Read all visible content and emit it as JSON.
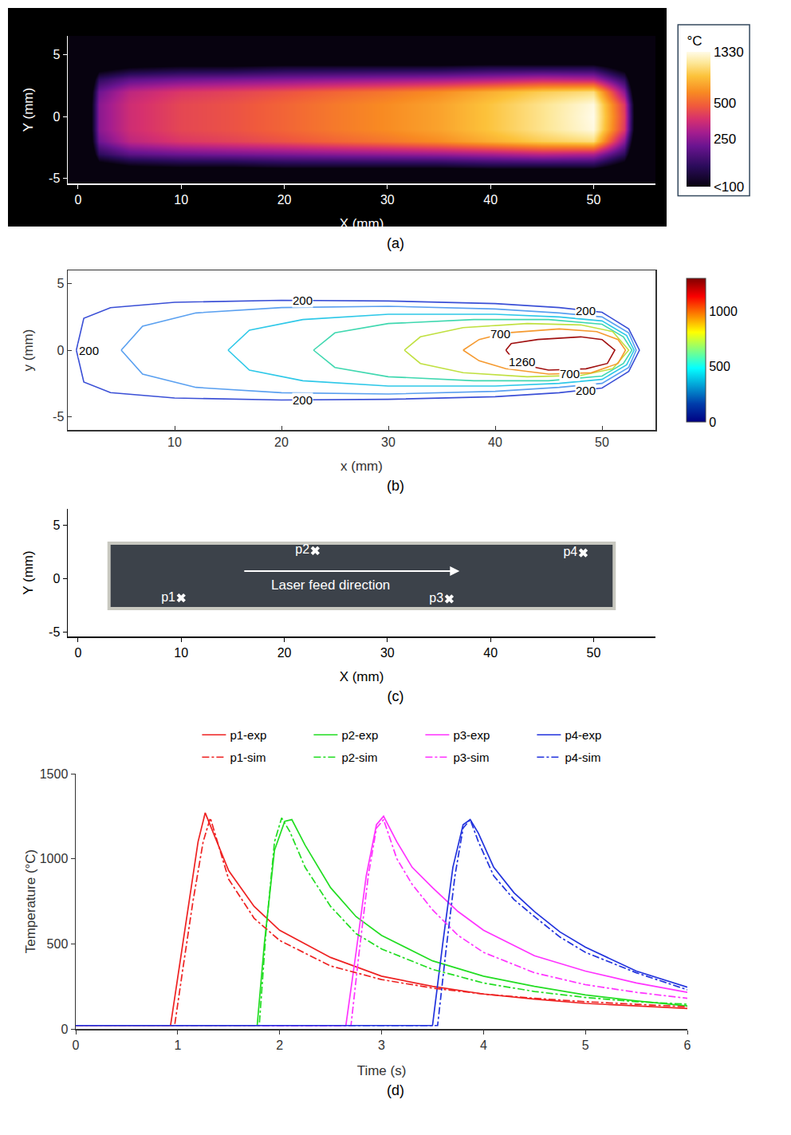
{
  "chart_data": [
    {
      "panel_label": "(a)",
      "type": "heatmap",
      "log": true,
      "grid": false,
      "x_label": "X (mm)",
      "y_label": "Y (mm)",
      "xlim": [
        -1,
        56
      ],
      "ylim": [
        -5.4,
        6.5
      ],
      "xticks": [
        0,
        10,
        20,
        30,
        40,
        50
      ],
      "yticks": [
        -5,
        0,
        5
      ],
      "x": [
        0,
        2,
        5,
        10,
        15,
        20,
        25,
        30,
        35,
        40,
        45,
        50,
        53,
        55
      ],
      "y": [
        -6,
        -5,
        -4,
        -3,
        -2,
        -1,
        0,
        1,
        2,
        3,
        4,
        5,
        6
      ],
      "z": [
        [
          20,
          20,
          20,
          20,
          20,
          20,
          20,
          20,
          20,
          20,
          20,
          20,
          20,
          20
        ],
        [
          20,
          30,
          40,
          40,
          40,
          40,
          40,
          40,
          40,
          40,
          40,
          40,
          30,
          20
        ],
        [
          20,
          80,
          100,
          110,
          110,
          120,
          120,
          120,
          120,
          130,
          130,
          130,
          80,
          20
        ],
        [
          20,
          150,
          200,
          220,
          230,
          240,
          250,
          260,
          270,
          290,
          320,
          300,
          150,
          20
        ],
        [
          20,
          220,
          320,
          380,
          410,
          450,
          500,
          550,
          620,
          750,
          900,
          1000,
          250,
          20
        ],
        [
          20,
          250,
          350,
          420,
          450,
          500,
          560,
          620,
          700,
          850,
          1050,
          1300,
          380,
          20
        ],
        [
          20,
          250,
          350,
          420,
          450,
          500,
          560,
          620,
          700,
          850,
          1050,
          1330,
          400,
          20
        ],
        [
          20,
          250,
          350,
          420,
          450,
          500,
          560,
          620,
          700,
          850,
          1050,
          1300,
          380,
          20
        ],
        [
          20,
          220,
          320,
          380,
          410,
          450,
          500,
          550,
          620,
          750,
          900,
          1000,
          250,
          20
        ],
        [
          20,
          150,
          200,
          220,
          230,
          240,
          250,
          260,
          270,
          290,
          320,
          300,
          150,
          20
        ],
        [
          20,
          80,
          100,
          110,
          110,
          120,
          120,
          120,
          120,
          130,
          130,
          130,
          80,
          20
        ],
        [
          20,
          30,
          40,
          40,
          40,
          40,
          40,
          40,
          40,
          40,
          40,
          40,
          30,
          20
        ],
        [
          20,
          20,
          20,
          20,
          20,
          20,
          20,
          20,
          20,
          20,
          20,
          20,
          20,
          20
        ]
      ],
      "colorbar_title": "°C",
      "colorbar_range": [
        100,
        1330
      ],
      "colorbar_ticks": [
        1330,
        500,
        250,
        {
          "value": 100,
          "label": "<100"
        }
      ]
    },
    {
      "panel_label": "(b)",
      "type": "contour_lines",
      "grid": false,
      "x_label": "x (mm)",
      "y_label": "y (mm)",
      "xlim": [
        0,
        55
      ],
      "ylim": [
        -6,
        6
      ],
      "xticks": [
        10,
        20,
        30,
        40,
        50
      ],
      "yticks": [
        -5,
        0,
        5
      ],
      "isotherms": [
        {
          "color": "#3a4fd6",
          "x": [
            0.8,
            1.5,
            4,
            10,
            20,
            30,
            40,
            46,
            50,
            52.5,
            53.5,
            52.5,
            50,
            46,
            40,
            30,
            20,
            10,
            4,
            1.5,
            0.8
          ],
          "y": [
            0,
            2.4,
            3.2,
            3.6,
            3.75,
            3.7,
            3.5,
            3.2,
            2.85,
            1.6,
            0,
            -1.6,
            -2.85,
            -3.2,
            -3.5,
            -3.7,
            -3.75,
            -3.6,
            -3.2,
            -2.4,
            0
          ]
        },
        {
          "color": "#5aa0f0",
          "x": [
            5,
            7,
            12,
            20,
            30,
            40,
            46,
            50,
            52.5,
            53.2,
            52.5,
            50,
            46,
            40,
            30,
            20,
            12,
            7,
            5
          ],
          "y": [
            0,
            1.8,
            2.8,
            3.2,
            3.3,
            3.1,
            2.8,
            2.5,
            1.3,
            0,
            -1.3,
            -2.5,
            -2.8,
            -3.1,
            -3.3,
            -3.2,
            -2.8,
            -1.8,
            0
          ]
        },
        {
          "color": "#2ec8e8",
          "x": [
            15,
            17,
            22,
            30,
            40,
            46,
            50,
            52.3,
            53,
            52.3,
            50,
            46,
            40,
            30,
            22,
            17,
            15
          ],
          "y": [
            0,
            1.5,
            2.3,
            2.7,
            2.7,
            2.5,
            2.2,
            1.1,
            0,
            -1.1,
            -2.2,
            -2.5,
            -2.7,
            -2.7,
            -2.3,
            -1.5,
            0
          ]
        },
        {
          "color": "#40d8b0",
          "x": [
            23,
            25,
            30,
            38,
            45,
            50,
            52,
            52.8,
            52,
            50,
            45,
            38,
            30,
            25,
            23
          ],
          "y": [
            0,
            1.3,
            2.0,
            2.3,
            2.3,
            1.95,
            1.0,
            0,
            -1.0,
            -1.95,
            -2.3,
            -2.3,
            -2.0,
            -1.3,
            0
          ]
        },
        {
          "color": "#c0e040",
          "x": [
            31.5,
            33,
            37,
            43,
            48,
            51,
            52.5,
            51,
            48,
            43,
            37,
            33,
            31.5
          ],
          "y": [
            0,
            1.0,
            1.7,
            2.0,
            1.9,
            1.4,
            0,
            -1.4,
            -1.9,
            -2.0,
            -1.7,
            -1.0,
            0
          ]
        },
        {
          "color": "#f59a30",
          "x": [
            37,
            38.5,
            41,
            46,
            49.5,
            51.5,
            52.2,
            51.5,
            49,
            45,
            41,
            38.5,
            37
          ],
          "y": [
            0,
            0.8,
            1.3,
            1.6,
            1.4,
            0.8,
            0,
            -1.0,
            -1.7,
            -1.8,
            -1.4,
            -0.8,
            0
          ]
        },
        {
          "color": "#a01010",
          "x": [
            41,
            41.5,
            44,
            48,
            50,
            51.2,
            50.5,
            48.5,
            45,
            42,
            41
          ],
          "y": [
            0,
            0.5,
            0.8,
            1.0,
            0.8,
            0,
            -1.0,
            -1.4,
            -1.5,
            -1.0,
            0
          ]
        }
      ],
      "labels": [
        {
          "text": "200",
          "x": 2.0,
          "y": 0
        },
        {
          "text": "200",
          "x": 22,
          "y": 3.75
        },
        {
          "text": "200",
          "x": 22,
          "y": -3.75
        },
        {
          "text": "700",
          "x": 40.5,
          "y": 1.25
        },
        {
          "text": "1260",
          "x": 42.5,
          "y": -0.85
        },
        {
          "text": "700",
          "x": 47,
          "y": -1.75
        },
        {
          "text": "200",
          "x": 48.5,
          "y": 3.0
        },
        {
          "text": "200",
          "x": 48.5,
          "y": -3.0
        }
      ],
      "colorbar_range": [
        0,
        1300
      ],
      "colorbar_ticks": [
        0,
        500,
        1000
      ]
    },
    {
      "panel_label": "(c)",
      "type": "scatter",
      "grid": false,
      "marker": "x",
      "color": "#ffffff",
      "x_label": "X (mm)",
      "y_label": "Y (mm)",
      "xlim": [
        -1,
        56
      ],
      "ylim": [
        -5.4,
        6.5
      ],
      "xticks": [
        0,
        10,
        20,
        30,
        40,
        50
      ],
      "yticks": [
        -5,
        0,
        5
      ],
      "track": {
        "x": [
          3,
          52
        ],
        "y": [
          -2.8,
          3.3
        ],
        "color": "#3c424a"
      },
      "points": [
        {
          "name": "p1",
          "x": 10,
          "y": -1.8
        },
        {
          "name": "p2",
          "x": 23,
          "y": 2.6
        },
        {
          "name": "p3",
          "x": 36,
          "y": -1.9
        },
        {
          "name": "p4",
          "x": 49,
          "y": 2.4
        }
      ],
      "arrow": {
        "text": "Laser feed direction",
        "x": [
          16,
          37
        ],
        "y": 0.7
      }
    },
    {
      "panel_label": "(d)",
      "type": "line",
      "grid": false,
      "legend": "top",
      "x_label": "Time (s)",
      "y_label": "Temperature (°C)",
      "xlim": [
        0,
        6
      ],
      "ylim": [
        0,
        1500
      ],
      "xticks": [
        0,
        1,
        2,
        3,
        4,
        5,
        6
      ],
      "yticks": [
        0,
        500,
        1000,
        1500
      ],
      "series": [
        {
          "name": "p1-exp",
          "color": "#ee2222",
          "line_style": "solid",
          "x": [
            0,
            0.93,
            1.0,
            1.1,
            1.2,
            1.27,
            1.35,
            1.5,
            1.75,
            2,
            2.5,
            3,
            3.5,
            4,
            4.5,
            5,
            5.5,
            6
          ],
          "values": [
            20,
            20,
            300,
            700,
            1100,
            1270,
            1150,
            930,
            720,
            580,
            420,
            310,
            250,
            205,
            175,
            150,
            135,
            120
          ]
        },
        {
          "name": "p2-exp",
          "color": "#22dd22",
          "line_style": "solid",
          "x": [
            0,
            1.78,
            1.85,
            1.95,
            2.05,
            2.12,
            2.25,
            2.5,
            2.75,
            3,
            3.5,
            4,
            4.5,
            5,
            5.5,
            6
          ],
          "values": [
            20,
            20,
            500,
            1050,
            1220,
            1230,
            1080,
            830,
            660,
            550,
            400,
            310,
            250,
            200,
            165,
            135
          ]
        },
        {
          "name": "p3-exp",
          "color": "#ff33ff",
          "line_style": "solid",
          "x": [
            0,
            2.65,
            2.75,
            2.85,
            2.95,
            3.02,
            3.15,
            3.3,
            3.5,
            3.75,
            4,
            4.5,
            5,
            5.5,
            6
          ],
          "values": [
            20,
            20,
            450,
            900,
            1200,
            1250,
            1100,
            950,
            830,
            690,
            580,
            430,
            340,
            270,
            215
          ]
        },
        {
          "name": "p4-exp",
          "color": "#2233dd",
          "line_style": "solid",
          "x": [
            0,
            3.5,
            3.6,
            3.7,
            3.8,
            3.87,
            3.95,
            4.1,
            4.3,
            4.5,
            4.75,
            5,
            5.5,
            6
          ],
          "values": [
            20,
            20,
            500,
            950,
            1200,
            1230,
            1150,
            950,
            800,
            690,
            570,
            480,
            340,
            245
          ]
        },
        {
          "name": "p1-sim",
          "color": "#ee2222",
          "line_style": "dashdot",
          "x": [
            0,
            0.97,
            1.05,
            1.15,
            1.25,
            1.32,
            1.4,
            1.5,
            1.75,
            2,
            2.5,
            3,
            3.5,
            4,
            4.5,
            5,
            5.5,
            6
          ],
          "values": [
            20,
            20,
            350,
            750,
            1100,
            1240,
            1080,
            880,
            650,
            520,
            370,
            290,
            240,
            205,
            180,
            160,
            145,
            130
          ]
        },
        {
          "name": "p2-sim",
          "color": "#22dd22",
          "line_style": "dashdot",
          "x": [
            0,
            1.8,
            1.87,
            1.95,
            2.02,
            2.1,
            2.25,
            2.5,
            2.75,
            3,
            3.5,
            4,
            4.5,
            5,
            5.5,
            6
          ],
          "values": [
            20,
            20,
            600,
            1100,
            1240,
            1160,
            950,
            720,
            560,
            470,
            350,
            270,
            220,
            185,
            160,
            145
          ]
        },
        {
          "name": "p3-sim",
          "color": "#ff33ff",
          "line_style": "dashdot",
          "x": [
            0,
            2.7,
            2.78,
            2.87,
            2.95,
            3.02,
            3.15,
            3.3,
            3.5,
            3.75,
            4,
            4.5,
            5,
            5.5,
            6
          ],
          "values": [
            20,
            20,
            450,
            900,
            1180,
            1230,
            1000,
            850,
            700,
            550,
            450,
            330,
            260,
            215,
            180
          ]
        },
        {
          "name": "p4-sim",
          "color": "#2233dd",
          "line_style": "dashdot",
          "x": [
            0,
            3.55,
            3.63,
            3.72,
            3.8,
            3.87,
            3.95,
            4.1,
            4.3,
            4.5,
            4.75,
            5,
            5.5,
            6
          ],
          "values": [
            20,
            20,
            450,
            900,
            1180,
            1230,
            1100,
            900,
            760,
            660,
            540,
            450,
            330,
            230
          ]
        }
      ]
    }
  ]
}
